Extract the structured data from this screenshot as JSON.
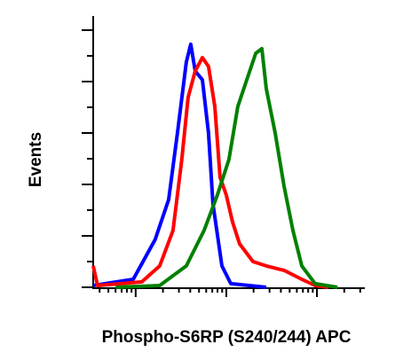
{
  "chart_data": {
    "type": "line",
    "x_label": "Phospho-S6RP (S240/244) APC",
    "y_label": "Events",
    "xscale": "log",
    "xlim": [
      3.4,
      3300
    ],
    "xticks": [
      4,
      5,
      6,
      7,
      8,
      9,
      10,
      20,
      30,
      40,
      50,
      60,
      70,
      80,
      90,
      100,
      200,
      300,
      400,
      500,
      600,
      700,
      800,
      900,
      1000,
      2000,
      3000
    ],
    "ylim": [
      0,
      105
    ],
    "yticks": [
      0,
      10,
      20,
      30,
      40,
      50,
      60,
      70,
      80,
      90,
      100
    ],
    "series": [
      {
        "color": "#0000ff",
        "x": [
          3.4,
          9.4,
          16.4,
          23.1,
          28.9,
          36.2,
          40.5,
          45.4,
          54.4,
          63.6,
          71.3,
          89.4,
          112,
          276
        ],
        "values": [
          0.7,
          3.1,
          18.6,
          34.1,
          60,
          87.6,
          94.5,
          84.1,
          80.7,
          60,
          32.4,
          8.3,
          1.4,
          0
        ]
      },
      {
        "color": "#ff0000",
        "x": [
          3.4,
          3.8,
          11.7,
          18.4,
          25.8,
          32.3,
          37.9,
          45.4,
          54.4,
          63.6,
          74.6,
          85.4,
          100,
          117,
          140,
          197,
          276,
          434,
          681,
          955,
          1340
        ],
        "values": [
          8.3,
          0.7,
          2.1,
          8.3,
          22.1,
          49.7,
          73.8,
          84.1,
          89.3,
          85.9,
          70.3,
          42.8,
          35.9,
          25.5,
          16.9,
          10,
          8.3,
          6.6,
          3.1,
          0.7,
          0
        ]
      },
      {
        "color": "#008000",
        "x": [
          6.0,
          18.4,
          36.2,
          56.9,
          79.8,
          107,
          134,
          168,
          211,
          247,
          276,
          346,
          434,
          543,
          681,
          955,
          1680
        ],
        "values": [
          0,
          0.7,
          8.3,
          22.1,
          35.9,
          49.7,
          70.3,
          80.7,
          91,
          92.8,
          77.2,
          60,
          39.3,
          22.1,
          8.3,
          1.4,
          0
        ]
      }
    ]
  }
}
